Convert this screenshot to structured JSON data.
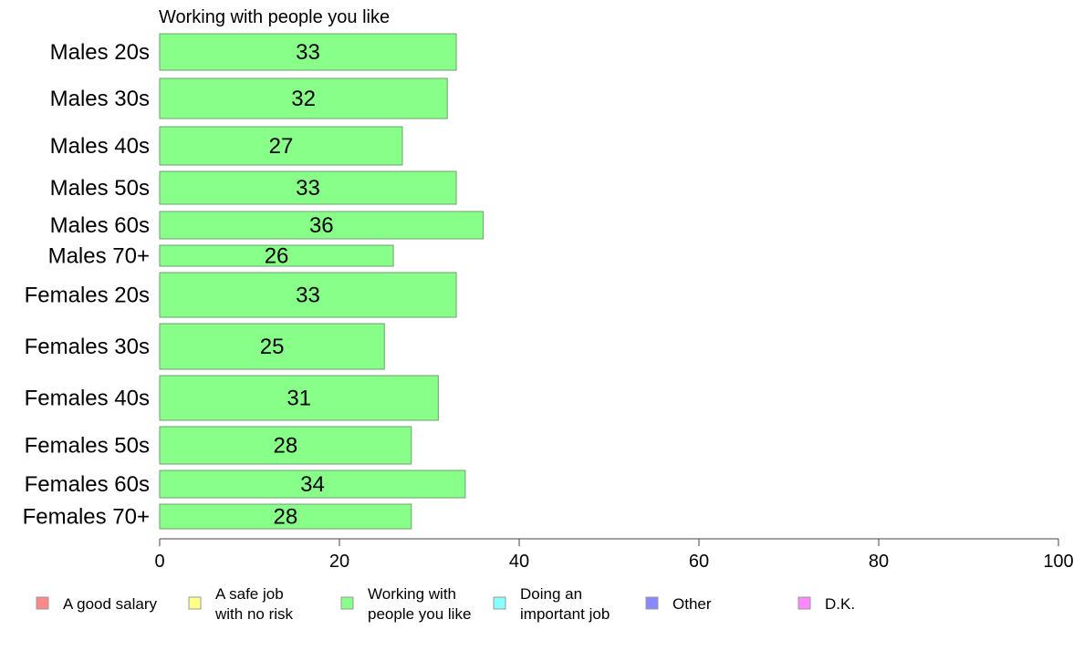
{
  "chart_data": {
    "type": "bar",
    "orientation": "horizontal",
    "title": "Working with people you like",
    "categories": [
      "Males 20s",
      "Males 30s",
      "Males 40s",
      "Males 50s",
      "Males 60s",
      "Males 70+",
      "Females 20s",
      "Females 30s",
      "Females 40s",
      "Females 50s",
      "Females 60s",
      "Females 70+"
    ],
    "values": [
      33,
      32,
      27,
      33,
      36,
      26,
      33,
      25,
      31,
      28,
      34,
      28
    ],
    "xlim": [
      0,
      100
    ],
    "xticks": [
      "0",
      "20",
      "40",
      "60",
      "80",
      "100"
    ],
    "bar_color": "#88ff88",
    "grid": false,
    "legend_position": "bottom",
    "legend": [
      {
        "lines": [
          "A good salary"
        ],
        "color": "#ff8888"
      },
      {
        "lines": [
          "A safe job",
          "with no risk"
        ],
        "color": "#ffff88"
      },
      {
        "lines": [
          "Working with",
          "people you like"
        ],
        "color": "#88ff88"
      },
      {
        "lines": [
          "Doing an",
          "important job"
        ],
        "color": "#88ffff"
      },
      {
        "lines": [
          "Other"
        ],
        "color": "#8888ff"
      },
      {
        "lines": [
          "D.K."
        ],
        "color": "#ff88ff"
      }
    ]
  }
}
